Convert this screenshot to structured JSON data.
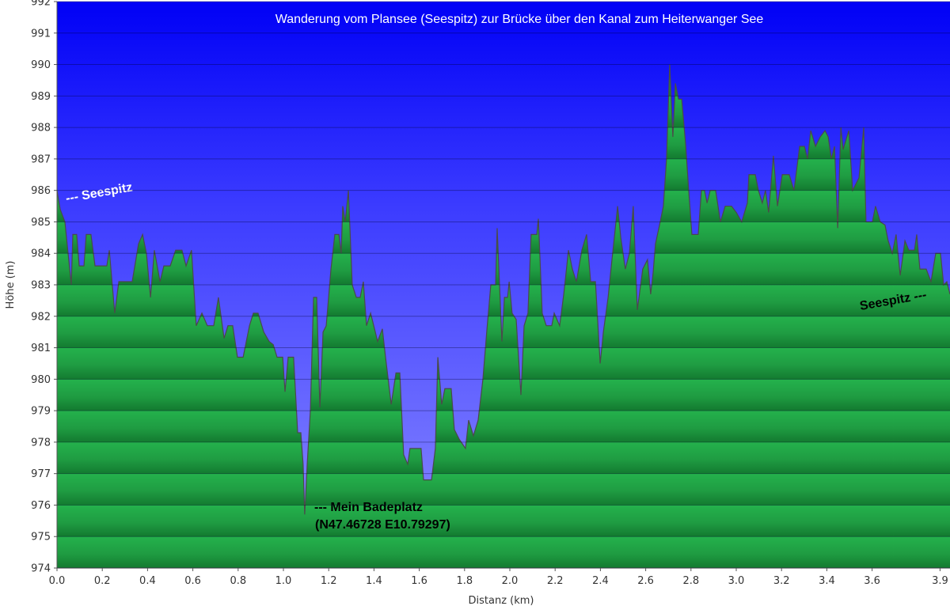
{
  "chart_data": {
    "type": "area",
    "title": "Wanderung vom Plansee (Seespitz) zur Brücke über den Kanal zum Heiterwanger See",
    "x_label": "Distanz  (km)",
    "y_label": "Höhe (m)",
    "color": "#22b04a",
    "line_color": "#4a4a4a",
    "grid": true,
    "xlim": [
      0,
      3.944
    ],
    "ylim": [
      974,
      992
    ],
    "xticks": [
      {
        "value": 0,
        "label": "0.0"
      },
      0.2,
      0.4,
      0.6,
      0.8,
      {
        "value": 1,
        "label": "1.0"
      },
      1.2,
      1.4,
      1.6,
      1.8,
      {
        "value": 2,
        "label": "2.0"
      },
      2.2,
      2.4,
      2.6,
      2.8,
      {
        "value": 3,
        "label": "3.0"
      },
      3.2,
      3.4,
      3.6,
      3.9
    ],
    "yticks": [
      974,
      975,
      976,
      977,
      978,
      979,
      980,
      981,
      982,
      983,
      984,
      985,
      986,
      987,
      988,
      989,
      990,
      991,
      992
    ],
    "annotations": [
      "--- Seespitz",
      "--- Mein Badeplatz",
      "(N47.46728  E10.79297)",
      "Seespitz ---"
    ],
    "x": [
      0,
      0.014,
      0.035,
      0.063,
      0.07,
      0.087,
      0.098,
      0.119,
      0.129,
      0.15,
      0.168,
      0.22,
      0.231,
      0.255,
      0.273,
      0.332,
      0.36,
      0.378,
      0.395,
      0.413,
      0.43,
      0.455,
      0.472,
      0.5,
      0.524,
      0.552,
      0.57,
      0.594,
      0.615,
      0.64,
      0.664,
      0.692,
      0.713,
      0.738,
      0.755,
      0.776,
      0.797,
      0.822,
      0.85,
      0.867,
      0.888,
      0.913,
      0.937,
      0.955,
      0.972,
      0.997,
      1.007,
      1.021,
      1.045,
      1.063,
      1.077,
      1.087,
      1.094,
      1.105,
      1.119,
      1.133,
      1.147,
      1.161,
      1.175,
      1.189,
      1.21,
      1.227,
      1.245,
      1.255,
      1.262,
      1.273,
      1.287,
      1.304,
      1.322,
      1.339,
      1.353,
      1.367,
      1.385,
      1.399,
      1.416,
      1.437,
      1.451,
      1.476,
      1.497,
      1.514,
      1.531,
      1.549,
      1.559,
      1.608,
      1.619,
      1.654,
      1.671,
      1.682,
      1.699,
      1.713,
      1.741,
      1.755,
      1.776,
      1.804,
      1.818,
      1.839,
      1.86,
      1.881,
      1.899,
      1.916,
      1.937,
      1.944,
      1.965,
      1.976,
      1.99,
      1.997,
      2.01,
      2.028,
      2.049,
      2.063,
      2.08,
      2.094,
      2.119,
      2.126,
      2.143,
      2.161,
      2.185,
      2.196,
      2.22,
      2.238,
      2.259,
      2.276,
      2.294,
      2.318,
      2.339,
      2.357,
      2.378,
      2.399,
      2.413,
      2.434,
      2.451,
      2.476,
      2.49,
      2.51,
      2.528,
      2.545,
      2.563,
      2.587,
      2.608,
      2.622,
      2.633,
      2.643,
      2.664,
      2.678,
      2.692,
      2.706,
      2.72,
      2.731,
      2.745,
      2.759,
      2.776,
      2.79,
      2.804,
      2.832,
      2.846,
      2.86,
      2.871,
      2.885,
      2.909,
      2.93,
      2.951,
      2.979,
      3.0,
      3.024,
      3.049,
      3.056,
      3.084,
      3.098,
      3.115,
      3.129,
      3.143,
      3.164,
      3.182,
      3.203,
      3.234,
      3.255,
      3.28,
      3.301,
      3.315,
      3.329,
      3.35,
      3.371,
      3.392,
      3.406,
      3.42,
      3.434,
      3.448,
      3.462,
      3.472,
      3.497,
      3.514,
      3.542,
      3.563,
      3.573,
      3.601,
      3.615,
      3.636,
      3.657,
      3.671,
      3.689,
      3.706,
      3.724,
      3.745,
      3.762,
      3.787,
      3.797,
      3.811,
      3.839,
      3.86,
      3.881,
      3.902,
      3.916,
      3.93,
      3.944
    ],
    "values": [
      986.0,
      985.4,
      985.0,
      983.0,
      984.6,
      984.6,
      983.6,
      983.6,
      984.6,
      984.6,
      983.6,
      983.6,
      984.1,
      982.1,
      983.1,
      983.1,
      984.3,
      984.6,
      984.0,
      982.6,
      984.1,
      983.1,
      983.6,
      983.6,
      984.1,
      984.1,
      983.6,
      984.1,
      981.7,
      982.1,
      981.7,
      981.7,
      982.6,
      981.3,
      981.7,
      981.7,
      980.7,
      980.7,
      981.7,
      982.1,
      982.1,
      981.5,
      981.2,
      981.1,
      980.7,
      980.7,
      979.6,
      980.7,
      980.7,
      978.3,
      978.3,
      977.3,
      975.7,
      977.3,
      979.0,
      982.6,
      982.6,
      979.1,
      981.5,
      981.7,
      983.5,
      984.6,
      984.6,
      984.0,
      985.5,
      985.0,
      986.0,
      983.0,
      982.6,
      982.6,
      983.1,
      981.7,
      982.1,
      981.7,
      981.2,
      981.6,
      980.7,
      979.2,
      980.2,
      980.2,
      977.6,
      977.3,
      977.8,
      977.8,
      976.8,
      976.8,
      977.8,
      980.7,
      979.2,
      979.7,
      979.7,
      978.4,
      978.1,
      977.8,
      978.7,
      978.2,
      978.7,
      980.0,
      981.6,
      983.0,
      983.0,
      984.8,
      981.2,
      982.6,
      982.6,
      983.1,
      982.1,
      981.9,
      979.5,
      981.7,
      982.1,
      984.6,
      984.6,
      985.1,
      982.1,
      981.7,
      981.7,
      982.1,
      981.7,
      982.7,
      984.1,
      983.5,
      983.1,
      984.1,
      984.6,
      983.1,
      983.1,
      980.5,
      981.5,
      982.6,
      983.8,
      985.5,
      984.5,
      983.5,
      984.0,
      985.5,
      982.2,
      983.5,
      983.8,
      982.7,
      983.4,
      984.3,
      985.0,
      985.5,
      987.0,
      990.0,
      987.7,
      989.4,
      988.9,
      988.9,
      987.5,
      986.0,
      984.6,
      984.6,
      986.0,
      986.0,
      985.6,
      986.0,
      986.0,
      985.0,
      985.5,
      985.5,
      985.3,
      985.0,
      985.6,
      986.5,
      986.5,
      986.0,
      985.6,
      986.0,
      985.3,
      987.1,
      985.5,
      986.5,
      986.5,
      986.0,
      987.4,
      987.4,
      987.0,
      987.9,
      987.4,
      987.7,
      987.9,
      987.7,
      987.0,
      987.4,
      984.8,
      988.0,
      987.3,
      987.9,
      986.0,
      986.4,
      988.0,
      985.0,
      985.0,
      985.5,
      985.0,
      984.9,
      984.4,
      984.0,
      984.6,
      983.3,
      984.4,
      984.1,
      984.1,
      984.6,
      983.5,
      983.5,
      983.1,
      984.0,
      984.0,
      983.0,
      983.1,
      982.7
    ]
  }
}
